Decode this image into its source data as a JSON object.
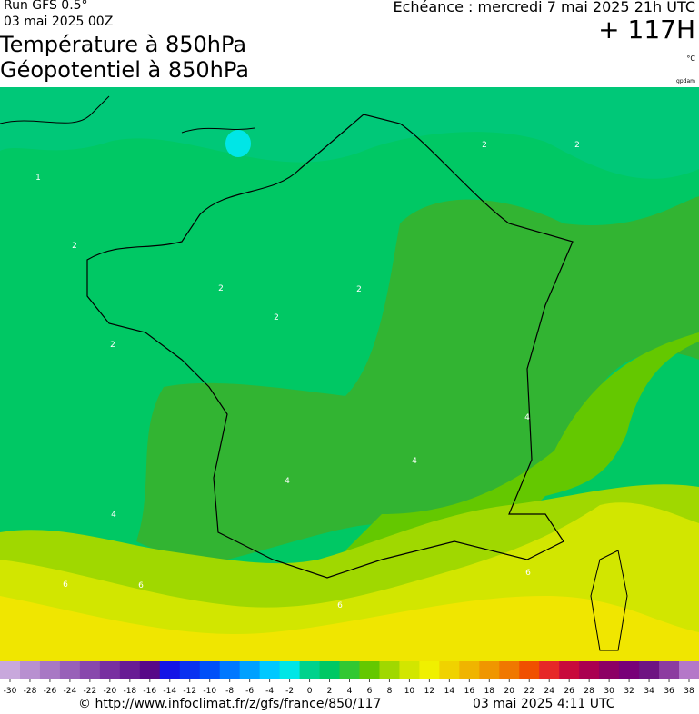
{
  "header": {
    "run": "Run GFS 0.5°",
    "run_date": "03 mai 2025 00Z",
    "title_1": "Température à 850hPa",
    "title_2": "Géopotentiel à 850hPa",
    "valid": "Echéance : mercredi 7 mai 2025 21h UTC",
    "lead": "+ 117H",
    "unit": "°C",
    "credit": "gpdam"
  },
  "map": {
    "contour_labels": [
      1,
      2,
      2,
      2,
      2,
      2,
      2,
      2,
      4,
      4,
      4,
      4,
      6,
      6,
      6,
      6
    ]
  },
  "legend": {
    "ticks": [
      -30,
      -28,
      -26,
      -24,
      -22,
      -20,
      -18,
      -16,
      -14,
      -12,
      -10,
      -8,
      -6,
      -4,
      -2,
      0,
      2,
      4,
      6,
      8,
      10,
      12,
      14,
      16,
      18,
      20,
      22,
      24,
      26,
      28,
      30,
      32,
      34,
      36,
      38
    ],
    "colors": [
      "#c8a8dc",
      "#b890d0",
      "#a878c4",
      "#9860b8",
      "#8848ac",
      "#7830a0",
      "#681c94",
      "#580888",
      "#1414e6",
      "#0a32f0",
      "#0050f8",
      "#0078ff",
      "#00a0ff",
      "#00c8ff",
      "#00e6e6",
      "#00d28c",
      "#00c864",
      "#32c832",
      "#64c800",
      "#a0d800",
      "#d2e600",
      "#f0f000",
      "#f0d200",
      "#f0b400",
      "#f09600",
      "#f07800",
      "#f05000",
      "#e62828",
      "#c80a3c",
      "#aa0050",
      "#8c0064",
      "#780078",
      "#6e1482",
      "#8c3ca0",
      "#b478c8"
    ]
  },
  "footer": {
    "url": "© http://www.infoclimat.fr/z/gfs/france/850/117",
    "date": "03 mai 2025  4:11 UTC"
  }
}
